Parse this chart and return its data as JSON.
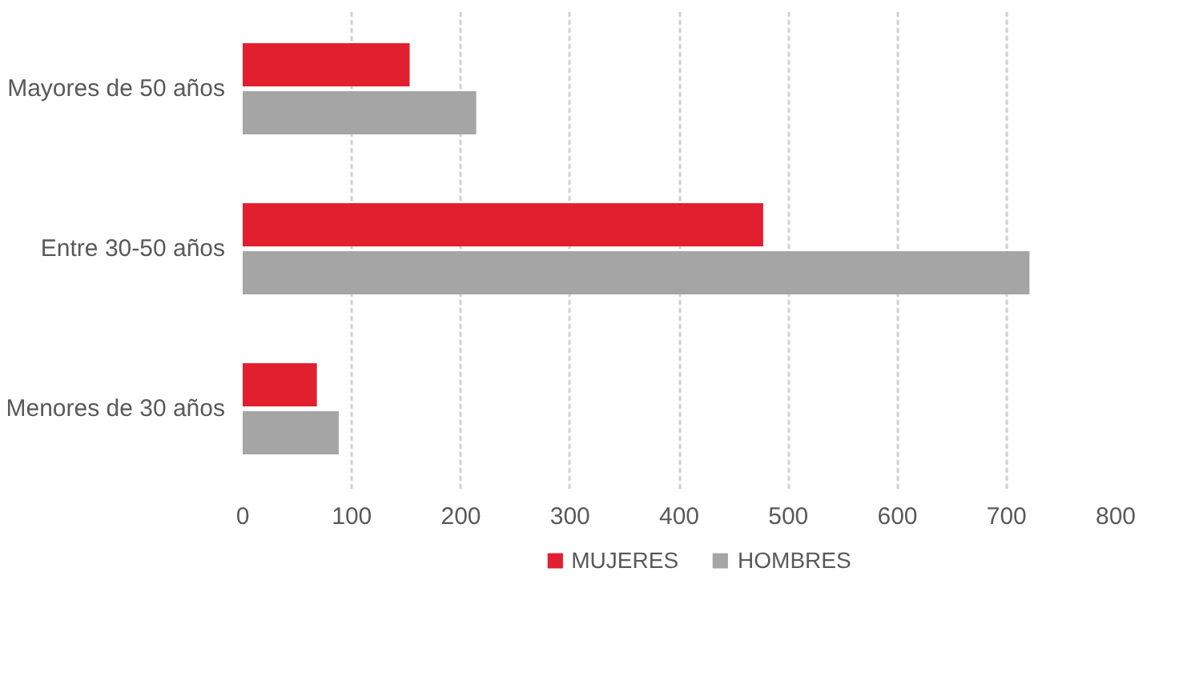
{
  "chart_data": {
    "type": "bar",
    "orientation": "horizontal",
    "categories": [
      "Mayores de 50 años",
      "Entre 30-50 años",
      "Menores de 30 años"
    ],
    "series": [
      {
        "name": "MUJERES",
        "color": "#e21f2f",
        "values": [
          153,
          477,
          68
        ]
      },
      {
        "name": "HOMBRES",
        "color": "#a5a5a5",
        "values": [
          214,
          721,
          88
        ]
      }
    ],
    "xlim": [
      0,
      800
    ],
    "xticks": [
      0,
      100,
      200,
      300,
      400,
      500,
      600,
      700,
      800
    ],
    "grid": "x",
    "legend": "bottom"
  }
}
